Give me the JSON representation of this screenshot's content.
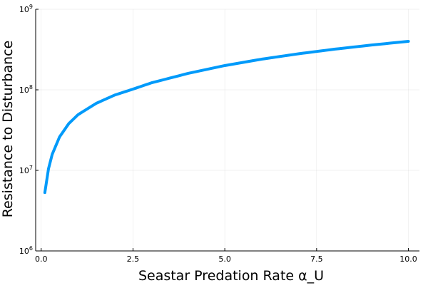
{
  "chart_data": {
    "type": "line",
    "title": "",
    "xlabel": "Seastar Predation Rate α_U",
    "ylabel": "Resistance to Disturbance",
    "xlim": [
      -0.15,
      10.3
    ],
    "ylim": [
      1000000,
      1000000000
    ],
    "y_scale": "log",
    "grid": true,
    "legend": "none",
    "x_ticks": [
      {
        "value": 0,
        "label": "0.0"
      },
      {
        "value": 2.5,
        "label": "2.5"
      },
      {
        "value": 5,
        "label": "5.0"
      },
      {
        "value": 7.5,
        "label": "7.5"
      },
      {
        "value": 10,
        "label": "10.0"
      }
    ],
    "y_ticks": [
      {
        "value": 1000000,
        "base": "10",
        "exp": "6"
      },
      {
        "value": 10000000,
        "base": "10",
        "exp": "7"
      },
      {
        "value": 100000000,
        "base": "10",
        "exp": "8"
      },
      {
        "value": 1000000000,
        "base": "10",
        "exp": "9"
      }
    ],
    "series": [
      {
        "color": "#009AFA",
        "x": [
          0.1,
          0.2,
          0.3,
          0.5,
          0.75,
          1.0,
          1.5,
          2.0,
          2.5,
          3.0,
          4.0,
          5.0,
          6.0,
          7.0,
          8.0,
          9.0,
          10.0
        ],
        "y": [
          5300000,
          10500000,
          15800000,
          26000000,
          38000000,
          49000000,
          68000000,
          86000000,
          102000000,
          122000000,
          160000000,
          200000000,
          240000000,
          280000000,
          320000000,
          360000000,
          400000000
        ]
      }
    ]
  }
}
